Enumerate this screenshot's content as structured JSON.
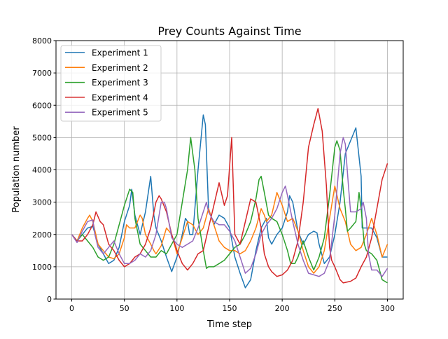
{
  "chart_data": {
    "type": "line",
    "title": "Prey Counts Against Time",
    "xlabel": "Time step",
    "ylabel": "Population number",
    "xlim": [
      -15,
      315
    ],
    "ylim": [
      0,
      8000
    ],
    "xticks": [
      0,
      50,
      100,
      150,
      200,
      250,
      300
    ],
    "yticks": [
      0,
      1000,
      2000,
      3000,
      4000,
      5000,
      6000,
      7000,
      8000
    ],
    "grid": true,
    "legend_position": "top-left",
    "series": [
      {
        "name": "Experiment 1",
        "color": "#1f77b4",
        "x": [
          0,
          5,
          10,
          15,
          20,
          25,
          30,
          35,
          40,
          45,
          50,
          55,
          57,
          60,
          65,
          70,
          75,
          78,
          80,
          85,
          90,
          95,
          100,
          105,
          108,
          110,
          112,
          115,
          120,
          125,
          127,
          130,
          135,
          140,
          145,
          150,
          155,
          160,
          165,
          170,
          175,
          180,
          185,
          187,
          190,
          195,
          200,
          205,
          207,
          210,
          215,
          220,
          225,
          230,
          233,
          235,
          240,
          245,
          250,
          255,
          260,
          265,
          270,
          275,
          276,
          280,
          285,
          290,
          295,
          300
        ],
        "y": [
          2000,
          1800,
          2000,
          2200,
          2250,
          1700,
          1400,
          1100,
          1200,
          1600,
          2400,
          2900,
          3400,
          2600,
          2000,
          2700,
          3800,
          2600,
          2200,
          1800,
          1300,
          850,
          1300,
          2000,
          2500,
          2400,
          2000,
          2000,
          4000,
          5700,
          5400,
          2800,
          2300,
          2600,
          2500,
          2200,
          1300,
          800,
          350,
          600,
          1500,
          2200,
          2500,
          1900,
          1700,
          2000,
          2200,
          2700,
          3200,
          3000,
          2100,
          1700,
          2000,
          2100,
          2050,
          1700,
          1100,
          1300,
          2000,
          3000,
          4500,
          4900,
          5300,
          3800,
          2200,
          2200,
          2200,
          1900,
          1300,
          1300
        ]
      },
      {
        "name": "Experiment 2",
        "color": "#ff7f0e",
        "x": [
          0,
          5,
          10,
          15,
          17,
          20,
          25,
          30,
          35,
          40,
          45,
          50,
          52,
          55,
          60,
          65,
          67,
          70,
          75,
          78,
          80,
          85,
          90,
          95,
          100,
          105,
          110,
          115,
          120,
          125,
          130,
          135,
          140,
          145,
          150,
          155,
          160,
          165,
          170,
          175,
          180,
          183,
          185,
          190,
          195,
          200,
          205,
          210,
          215,
          220,
          225,
          230,
          235,
          240,
          245,
          250,
          255,
          260,
          265,
          270,
          275,
          280,
          285,
          290,
          295,
          300
        ],
        "y": [
          2000,
          1800,
          2200,
          2500,
          2600,
          2400,
          1700,
          1500,
          1300,
          1250,
          1400,
          1900,
          2300,
          2200,
          2200,
          2600,
          2500,
          2000,
          1700,
          1500,
          1400,
          1650,
          2200,
          2000,
          1400,
          1900,
          2400,
          2300,
          2000,
          2200,
          2800,
          2300,
          1800,
          1600,
          1500,
          1500,
          1400,
          1500,
          1800,
          2200,
          2800,
          2600,
          2400,
          2600,
          3300,
          2900,
          2400,
          2500,
          2100,
          1500,
          1000,
          800,
          1000,
          1500,
          2500,
          3500,
          2800,
          2400,
          1700,
          1500,
          1600,
          2000,
          2500,
          2000,
          1300,
          1700
        ]
      },
      {
        "name": "Experiment 3",
        "color": "#2ca02c",
        "x": [
          0,
          5,
          10,
          15,
          20,
          25,
          30,
          35,
          40,
          45,
          50,
          55,
          58,
          60,
          65,
          70,
          75,
          80,
          85,
          90,
          100,
          105,
          110,
          113,
          117,
          120,
          125,
          128,
          130,
          135,
          140,
          145,
          150,
          155,
          160,
          165,
          170,
          175,
          178,
          180,
          183,
          187,
          190,
          195,
          200,
          205,
          208,
          212,
          215,
          220,
          225,
          230,
          235,
          240,
          245,
          250,
          252,
          255,
          258,
          260,
          262,
          265,
          270,
          273,
          275,
          278,
          280,
          285,
          290,
          295,
          300
        ],
        "y": [
          2000,
          1800,
          2000,
          1800,
          1600,
          1300,
          1200,
          1300,
          1700,
          2300,
          2900,
          3400,
          3300,
          2500,
          1700,
          1500,
          1300,
          1300,
          1500,
          1400,
          2000,
          3000,
          4000,
          5000,
          4000,
          2500,
          1500,
          950,
          1000,
          1000,
          1100,
          1200,
          1400,
          1600,
          1700,
          2000,
          2400,
          3100,
          3700,
          3800,
          3300,
          2600,
          2500,
          2400,
          2000,
          1500,
          1100,
          1100,
          1300,
          1800,
          1300,
          900,
          1300,
          1900,
          3200,
          4700,
          4900,
          4600,
          3400,
          2800,
          2100,
          2200,
          2400,
          3300,
          2800,
          1700,
          1500,
          1400,
          1200,
          600,
          500
        ]
      },
      {
        "name": "Experiment 4",
        "color": "#d62728",
        "x": [
          0,
          5,
          10,
          15,
          20,
          23,
          27,
          30,
          35,
          40,
          45,
          50,
          55,
          60,
          65,
          70,
          75,
          80,
          83,
          85,
          90,
          95,
          100,
          105,
          110,
          115,
          120,
          125,
          130,
          135,
          140,
          145,
          148,
          152,
          155,
          160,
          165,
          170,
          175,
          180,
          183,
          187,
          190,
          195,
          200,
          205,
          210,
          215,
          220,
          225,
          230,
          234,
          238,
          242,
          245,
          247,
          250,
          255,
          258,
          265,
          270,
          275,
          280,
          285,
          290,
          295,
          300
        ],
        "y": [
          2000,
          1800,
          1800,
          2000,
          2300,
          2700,
          2400,
          2300,
          1700,
          1500,
          1200,
          1000,
          1100,
          1300,
          1400,
          1700,
          2200,
          3000,
          3200,
          3100,
          2700,
          2000,
          1500,
          1100,
          900,
          1100,
          1400,
          1500,
          2200,
          2900,
          3600,
          2900,
          3200,
          5000,
          2000,
          1700,
          2400,
          3100,
          3000,
          2200,
          1400,
          1000,
          850,
          700,
          750,
          900,
          1200,
          1800,
          3000,
          4700,
          5400,
          5900,
          5200,
          3500,
          1600,
          1200,
          1000,
          600,
          500,
          550,
          650,
          1000,
          1300,
          1900,
          2800,
          3700,
          4200
        ]
      },
      {
        "name": "Experiment 5",
        "color": "#9467bd",
        "x": [
          0,
          5,
          10,
          15,
          20,
          22,
          25,
          30,
          35,
          40,
          45,
          50,
          55,
          60,
          65,
          70,
          75,
          80,
          85,
          88,
          90,
          95,
          100,
          105,
          110,
          115,
          120,
          125,
          128,
          130,
          135,
          140,
          145,
          150,
          155,
          160,
          165,
          170,
          175,
          180,
          185,
          190,
          195,
          200,
          203,
          205,
          210,
          215,
          220,
          225,
          230,
          235,
          240,
          245,
          250,
          255,
          258,
          260,
          263,
          265,
          270,
          275,
          277,
          280,
          282,
          285,
          290,
          295,
          300
        ],
        "y": [
          2000,
          1750,
          2100,
          2400,
          2450,
          2000,
          1600,
          1400,
          1600,
          1800,
          1400,
          1100,
          1100,
          1200,
          1400,
          1300,
          1500,
          2000,
          3000,
          3000,
          2800,
          1900,
          1700,
          1600,
          1700,
          1800,
          2200,
          2700,
          3000,
          2700,
          2400,
          2300,
          2300,
          2100,
          1800,
          1300,
          800,
          950,
          1400,
          2000,
          2300,
          2500,
          2800,
          3300,
          3500,
          3200,
          2400,
          1700,
          1200,
          800,
          750,
          700,
          800,
          1200,
          2600,
          4500,
          5000,
          4800,
          3500,
          2700,
          2700,
          2800,
          3000,
          2500,
          1400,
          900,
          900,
          700,
          950
        ]
      }
    ]
  }
}
